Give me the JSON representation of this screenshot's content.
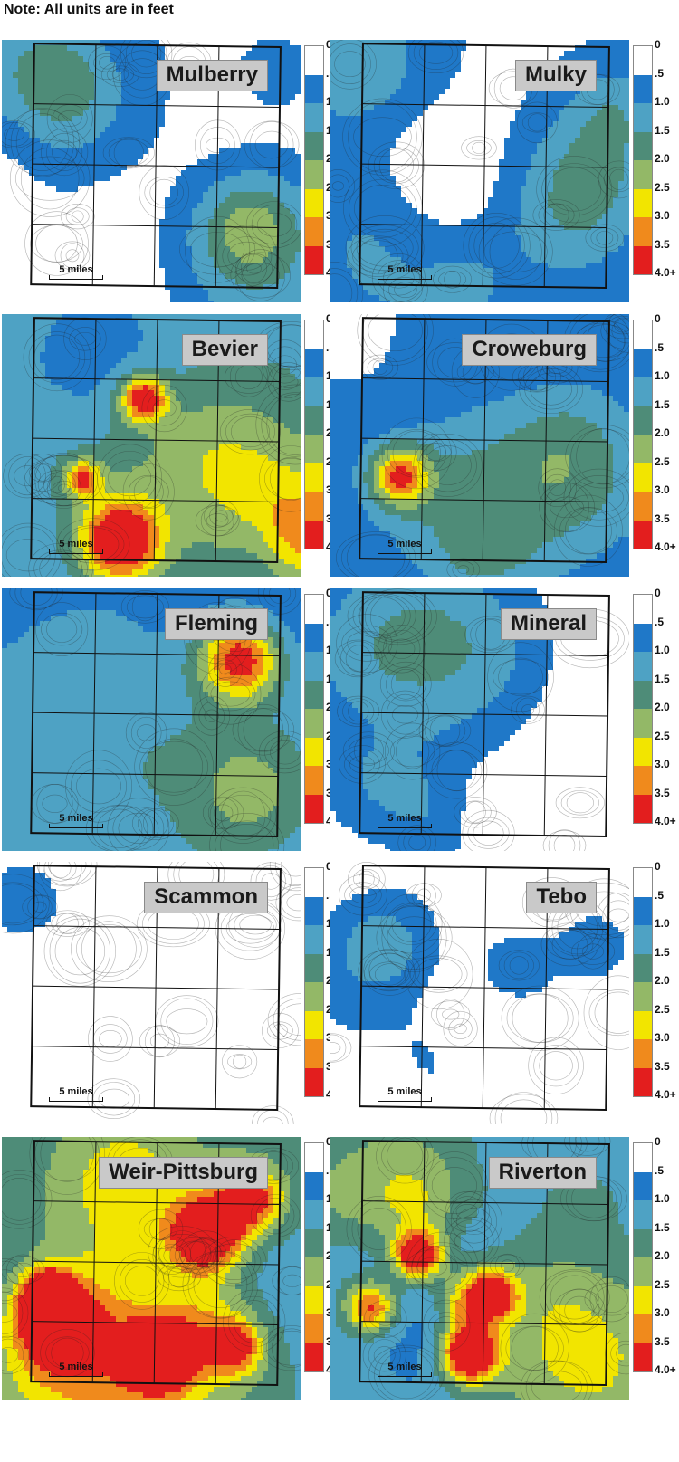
{
  "note": "Note:  All units are in feet",
  "legend": {
    "labels": [
      "0",
      ".5",
      "1.0",
      "1.5",
      "2.0",
      "2.5",
      "3.0",
      "3.5",
      "4.0+"
    ],
    "colors": [
      "#ffffff",
      "#1f78c8",
      "#4ea2c4",
      "#4e8c78",
      "#93b867",
      "#f2e500",
      "#f08a1c",
      "#e31e1e"
    ]
  },
  "scale_label": "5 miles",
  "panels": [
    {
      "name": "Mulberry",
      "level": 1.0,
      "hot": 0.0
    },
    {
      "name": "Mulky",
      "level": 1.0,
      "hot": 0.0
    },
    {
      "name": "Bevier",
      "level": 1.8,
      "hot": 0.3
    },
    {
      "name": "Croweburg",
      "level": 1.1,
      "hot": 0.05
    },
    {
      "name": "Fleming",
      "level": 1.2,
      "hot": 0.05
    },
    {
      "name": "Mineral",
      "level": 0.8,
      "hot": 0.0
    },
    {
      "name": "Scammon",
      "level": 0.4,
      "hot": 0.0
    },
    {
      "name": "Tebo",
      "level": 0.5,
      "hot": 0.0
    },
    {
      "name": "Weir-Pittsburg",
      "level": 1.9,
      "hot": 0.8
    },
    {
      "name": "Riverton",
      "level": 2.0,
      "hot": 0.7
    }
  ]
}
